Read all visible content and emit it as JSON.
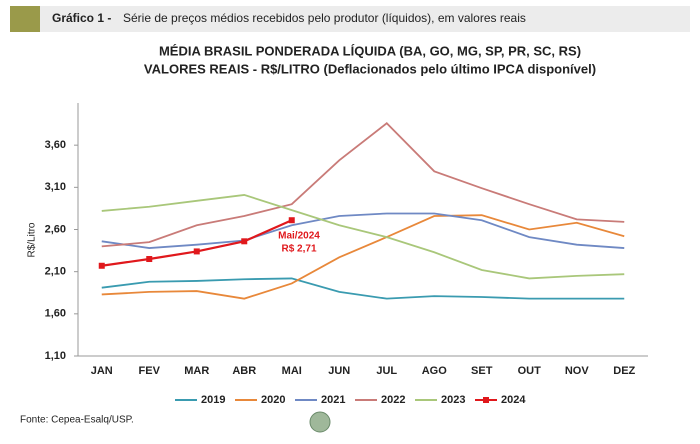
{
  "header": {
    "label": "Gráfico 1 -",
    "text": "Série de preços médios recebidos pelo produtor (líquidos), em valores reais"
  },
  "source": "Fonte: Cepea-Esalq/USP.",
  "chart_data": {
    "type": "line",
    "title": "MÉDIA BRASIL PONDERADA LÍQUIDA (BA, GO, MG, SP, PR, SC, RS)",
    "subtitle": "VALORES REAIS - R$/LITRO (Deflacionados pelo último IPCA disponível)",
    "y_label": "R$/Litro",
    "categories": [
      "JAN",
      "FEV",
      "MAR",
      "ABR",
      "MAI",
      "JUN",
      "JUL",
      "AGO",
      "SET",
      "OUT",
      "NOV",
      "DEZ"
    ],
    "ylim": [
      1.1,
      4.1
    ],
    "yticks": [
      {
        "value": 1.1,
        "label": "1,10"
      },
      {
        "value": 1.6,
        "label": "1,60"
      },
      {
        "value": 2.1,
        "label": "2,10"
      },
      {
        "value": 2.6,
        "label": "2,60"
      },
      {
        "value": 3.1,
        "label": "3,10"
      },
      {
        "value": 3.6,
        "label": "3,60"
      }
    ],
    "grid": false,
    "legend": "bottom",
    "series": [
      {
        "name": "2019",
        "color": "#3a9bb0",
        "values": [
          1.91,
          1.98,
          1.99,
          2.01,
          2.02,
          1.86,
          1.78,
          1.81,
          1.8,
          1.78,
          1.78,
          1.78
        ]
      },
      {
        "name": "2020",
        "color": "#e8883a",
        "values": [
          1.83,
          1.86,
          1.87,
          1.78,
          1.96,
          2.27,
          2.51,
          2.76,
          2.77,
          2.6,
          2.68,
          2.52
        ]
      },
      {
        "name": "2021",
        "color": "#6f89c4",
        "values": [
          2.46,
          2.38,
          2.42,
          2.47,
          2.65,
          2.76,
          2.79,
          2.79,
          2.71,
          2.51,
          2.42,
          2.38
        ]
      },
      {
        "name": "2022",
        "color": "#c97b78",
        "values": [
          2.4,
          2.45,
          2.65,
          2.76,
          2.9,
          3.42,
          3.86,
          3.29,
          3.09,
          2.9,
          2.72,
          2.69
        ]
      },
      {
        "name": "2023",
        "color": "#a9c77a",
        "values": [
          2.82,
          2.87,
          2.94,
          3.01,
          2.83,
          2.65,
          2.51,
          2.33,
          2.12,
          2.02,
          2.05,
          2.07
        ]
      },
      {
        "name": "2024",
        "color": "#e0181c",
        "markers": true,
        "values": [
          2.17,
          2.25,
          2.34,
          2.46,
          2.71,
          null,
          null,
          null,
          null,
          null,
          null,
          null
        ]
      }
    ],
    "annotations": [
      "Mai/2024",
      "R$ 2,71"
    ]
  }
}
